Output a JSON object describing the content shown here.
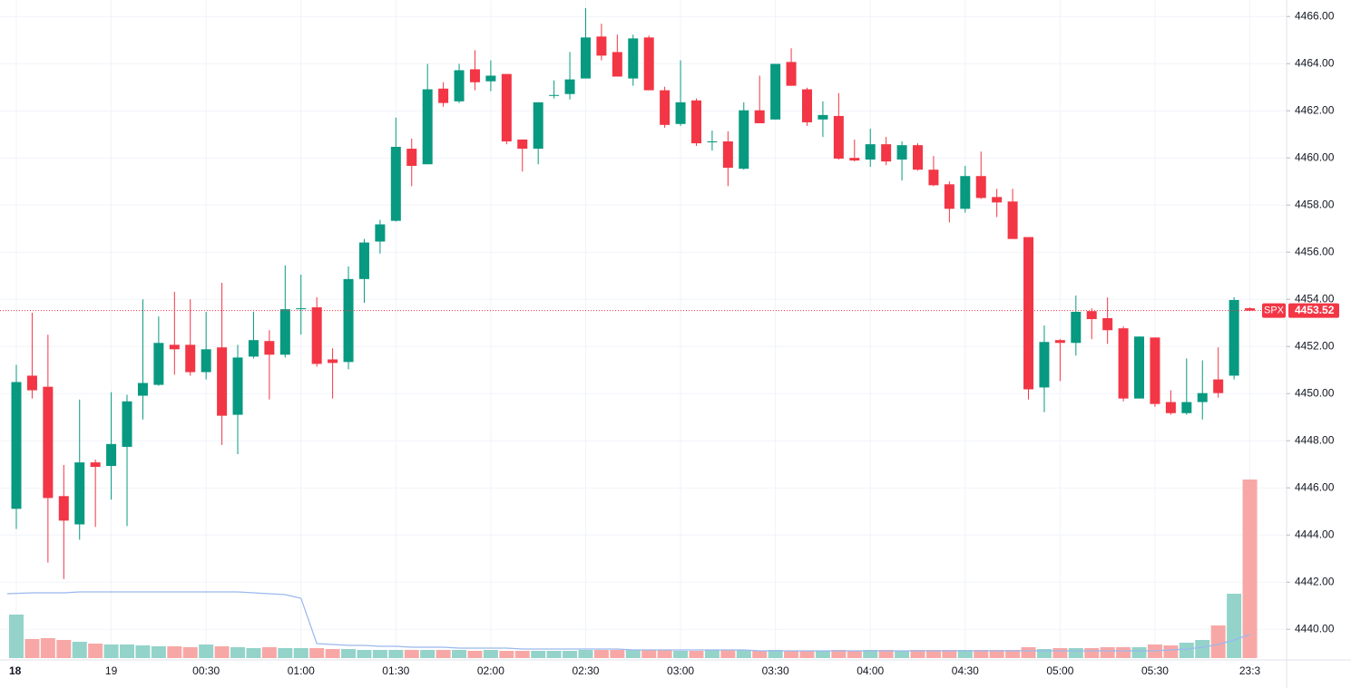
{
  "chart_data": {
    "type": "candlestick",
    "categories": [
      "18",
      null,
      null,
      null,
      null,
      null,
      "19",
      null,
      null,
      null,
      null,
      null,
      "00:30",
      null,
      null,
      null,
      null,
      null,
      "01:00",
      null,
      null,
      null,
      null,
      null,
      "01:30",
      null,
      null,
      null,
      null,
      null,
      "02:00",
      null,
      null,
      null,
      null,
      null,
      "02:30",
      null,
      null,
      null,
      null,
      null,
      "03:00",
      null,
      null,
      null,
      null,
      null,
      "03:30",
      null,
      null,
      null,
      null,
      null,
      "04:00",
      null,
      null,
      null,
      null,
      null,
      "04:30",
      null,
      null,
      null,
      null,
      null,
      "05:00",
      null,
      null,
      null,
      null,
      null,
      "05:30",
      null,
      null,
      null,
      null,
      null,
      "23:3"
    ],
    "open": [
      4445.11,
      4450.76,
      4450.29,
      4445.65,
      4444.45,
      4447.08,
      4446.93,
      4447.74,
      4449.91,
      4450.37,
      4452.07,
      4452.07,
      4450.91,
      4451.96,
      4449.1,
      4451.57,
      4452.23,
      4451.65,
      4453.58,
      4453.66,
      4451.45,
      4451.34,
      4454.86,
      4456.45,
      4457.33,
      4460.39,
      4459.73,
      4462.94,
      4462.4,
      4463.76,
      4463.25,
      4463.56,
      4460.78,
      4460.39,
      4462.63,
      4462.71,
      4463.37,
      4465.15,
      4464.49,
      4463.37,
      4465.11,
      4462.87,
      4461.44,
      4462.44,
      4460.66,
      4460.7,
      4459.54,
      4462.02,
      4461.63,
      4464.07,
      4462.91,
      4461.63,
      4461.78,
      4460.0,
      4459.93,
      4460.58,
      4459.93,
      4460.54,
      4459.5,
      4458.88,
      4457.84,
      4459.23,
      4458.34,
      4458.15,
      4456.64,
      4450.26,
      4452.27,
      4452.15,
      4453.5,
      4453.2,
      4452.77,
      4449.79,
      4452.38,
      4449.64,
      4449.17,
      4449.64,
      4450.6,
      4450.76,
      4453.62
    ],
    "high": [
      4451.22,
      4453.43,
      4452.5,
      4446.97,
      4449.75,
      4447.2,
      4450.06,
      4449.95,
      4454.0,
      4453.27,
      4454.32,
      4454.0,
      4453.47,
      4454.7,
      4452.07,
      4453.47,
      4452.69,
      4455.44,
      4455.05,
      4454.09,
      4451.92,
      4455.4,
      4456.56,
      4457.37,
      4461.71,
      4460.82,
      4463.99,
      4463.21,
      4463.99,
      4464.57,
      4464.14,
      4463.56,
      4460.78,
      4462.36,
      4463.29,
      4464.49,
      4466.35,
      4465.69,
      4465.23,
      4465.23,
      4465.19,
      4463.02,
      4464.14,
      4462.52,
      4461.16,
      4461.13,
      4462.36,
      4463.49,
      4463.99,
      4464.65,
      4462.98,
      4462.4,
      4462.75,
      4460.78,
      4461.24,
      4460.89,
      4460.7,
      4460.62,
      4460.08,
      4459.0,
      4459.66,
      4460.27,
      4458.69,
      4458.69,
      4456.64,
      4452.89,
      4452.31,
      4454.16,
      4453.62,
      4454.08,
      4452.85,
      4452.42,
      4452.38,
      4450.14,
      4451.49,
      4451.41,
      4451.96,
      4454.09,
      4453.66
    ],
    "low": [
      4444.26,
      4449.79,
      4442.83,
      4442.13,
      4443.8,
      4444.34,
      4445.5,
      4444.38,
      4448.9,
      4450.33,
      4450.8,
      4450.76,
      4450.6,
      4447.82,
      4447.43,
      4451.49,
      4449.75,
      4451.53,
      4452.5,
      4451.14,
      4449.79,
      4451.03,
      4453.85,
      4455.94,
      4457.3,
      4458.8,
      4459.73,
      4462.17,
      4462.33,
      4462.87,
      4462.83,
      4460.58,
      4459.42,
      4459.73,
      4462.52,
      4462.48,
      4463.37,
      4464.14,
      4463.45,
      4463.06,
      4462.87,
      4461.28,
      4461.36,
      4460.51,
      4460.31,
      4458.8,
      4459.5,
      4461.47,
      4461.63,
      4463.06,
      4461.36,
      4460.89,
      4459.93,
      4459.85,
      4459.62,
      4459.69,
      4459.04,
      4459.46,
      4458.8,
      4457.26,
      4457.68,
      4458.26,
      4457.49,
      4456.56,
      4449.75,
      4449.21,
      4450.53,
      4451.61,
      4452.31,
      4452.11,
      4449.67,
      4449.79,
      4449.44,
      4449.1,
      4449.1,
      4448.9,
      4449.83,
      4450.6,
      4453.5
    ],
    "close": [
      4450.49,
      4450.14,
      4445.57,
      4444.61,
      4447.08,
      4446.89,
      4447.86,
      4449.67,
      4450.45,
      4452.15,
      4451.88,
      4450.91,
      4451.88,
      4449.06,
      4451.53,
      4452.27,
      4451.65,
      4453.58,
      4453.62,
      4451.26,
      4451.3,
      4454.86,
      4456.41,
      4457.18,
      4460.47,
      4459.66,
      4462.91,
      4462.33,
      4463.72,
      4463.21,
      4463.49,
      4460.7,
      4460.39,
      4462.36,
      4462.67,
      4463.33,
      4465.11,
      4464.34,
      4463.45,
      4465.07,
      4462.87,
      4461.4,
      4462.36,
      4460.62,
      4460.7,
      4459.58,
      4462.02,
      4461.47,
      4463.99,
      4463.06,
      4461.51,
      4461.82,
      4459.97,
      4459.89,
      4460.58,
      4459.85,
      4460.54,
      4459.5,
      4458.84,
      4457.84,
      4459.23,
      4458.3,
      4458.11,
      4456.56,
      4450.18,
      4452.19,
      4452.15,
      4453.47,
      4453.16,
      4452.69,
      4449.79,
      4452.42,
      4449.56,
      4449.17,
      4449.64,
      4450.02,
      4450.02,
      4453.97,
      4453.52
    ],
    "volume": [
      48,
      21,
      22,
      20,
      18,
      16,
      15,
      15,
      14,
      13,
      13,
      12,
      15,
      13,
      12,
      11,
      12,
      11,
      11,
      11,
      10,
      10,
      9,
      9,
      9,
      9,
      9,
      9,
      9,
      8,
      9,
      8,
      8,
      8,
      8,
      8,
      9,
      9,
      9,
      9,
      9,
      9,
      8,
      8,
      9,
      9,
      9,
      8,
      9,
      8,
      8,
      8,
      9,
      8,
      9,
      9,
      8,
      9,
      9,
      9,
      9,
      9,
      9,
      9,
      12,
      10,
      11,
      11,
      11,
      12,
      12,
      12,
      15,
      14,
      17,
      20,
      36,
      71,
      197
    ],
    "volume_ma": [
      71,
      72,
      72,
      72,
      73,
      73,
      73,
      73,
      73,
      73,
      73,
      73,
      73,
      73,
      73,
      72,
      71,
      70,
      66,
      16,
      15,
      14,
      14,
      13,
      13,
      12,
      12,
      12,
      11,
      11,
      11,
      11,
      10,
      10,
      10,
      10,
      10,
      10,
      10,
      9,
      9,
      9,
      9,
      9,
      9,
      9,
      9,
      8,
      8,
      8,
      8,
      8,
      8,
      8,
      8,
      8,
      8,
      8,
      8,
      8,
      8,
      8,
      8,
      8,
      8,
      8,
      8,
      8,
      8,
      8,
      8,
      8,
      8,
      9,
      10,
      12,
      15,
      20,
      26
    ],
    "ylim": [
      4438.7,
      4466.7
    ],
    "yticks": [
      {
        "value": 4440,
        "label": "4440.00"
      },
      {
        "value": 4442,
        "label": "4442.00"
      },
      {
        "value": 4444,
        "label": "4444.00"
      },
      {
        "value": 4446,
        "label": "4446.00"
      },
      {
        "value": 4448,
        "label": "4448.00"
      },
      {
        "value": 4450,
        "label": "4450.00"
      },
      {
        "value": 4452,
        "label": "4452.00"
      },
      {
        "value": 4454,
        "label": "4454.00"
      },
      {
        "value": 4456,
        "label": "4456.00"
      },
      {
        "value": 4458,
        "label": "4458.00"
      },
      {
        "value": 4460,
        "label": "4460.00"
      },
      {
        "value": 4462,
        "label": "4462.00"
      },
      {
        "value": 4464,
        "label": "4464.00"
      },
      {
        "value": 4466,
        "label": "4466.00"
      }
    ],
    "symbol": "SPX",
    "last_price": 4453.52,
    "up_color": "#089981",
    "down_color": "#f23645",
    "volume_up_color": "#93d3ca",
    "volume_down_color": "#f7a8a6",
    "volume_ma_color": "#9ab8ee",
    "grid": true
  }
}
